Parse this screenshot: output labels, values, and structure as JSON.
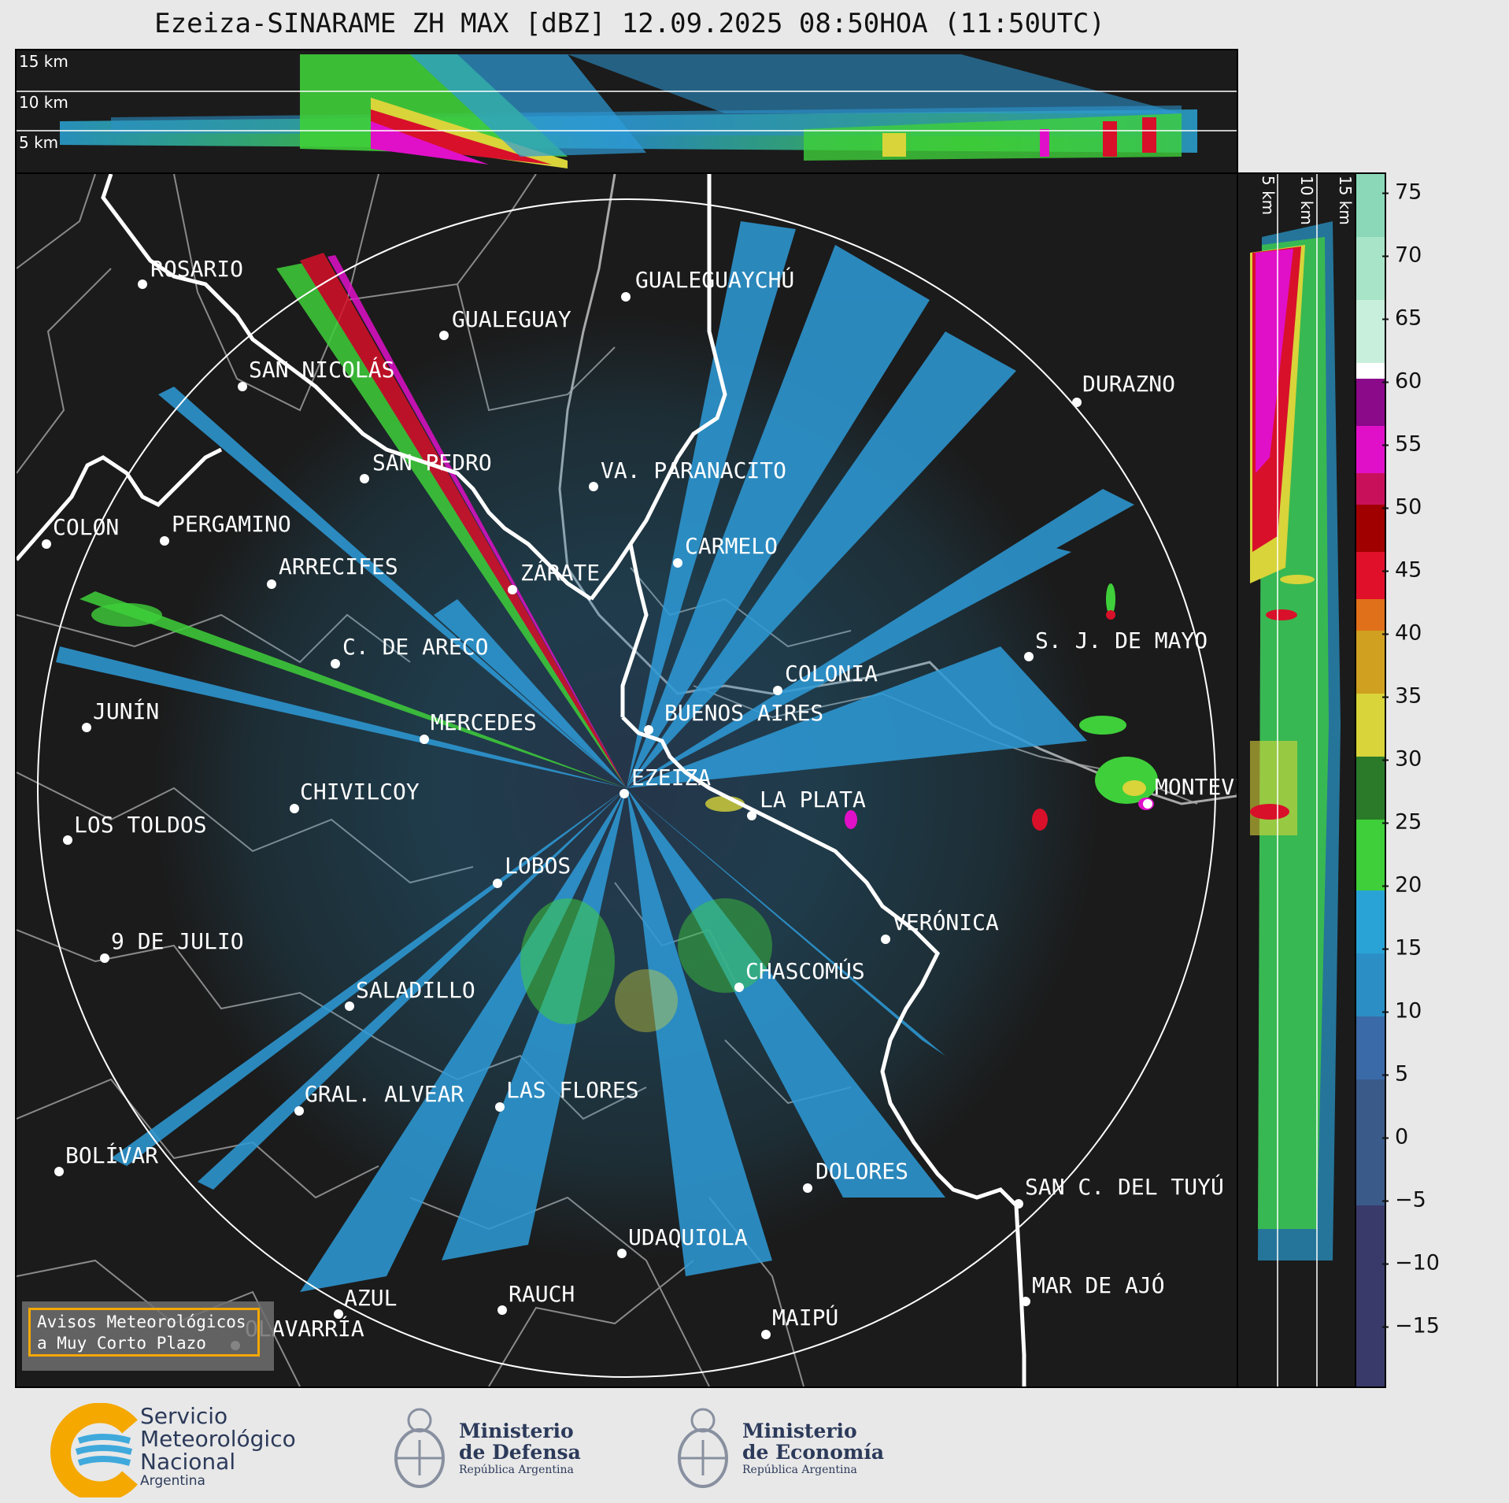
{
  "title": "Ezeiza-SINARAME ZH MAX [dBZ] 12.09.2025 08:50HOA (11:50UTC)",
  "altitude_labels_top": [
    "15 km",
    "10 km",
    "5 km"
  ],
  "altitude_labels_side": [
    "5 km",
    "10 km",
    "15 km"
  ],
  "colorbar": {
    "ticks": [
      "75",
      "70",
      "65",
      "60",
      "55",
      "50",
      "45",
      "40",
      "35",
      "30",
      "25",
      "20",
      "15",
      "10",
      "5",
      "0",
      "−5",
      "−10",
      "−15"
    ],
    "min": -20,
    "max": 77
  },
  "cities": [
    {
      "name": "ROSARIO"
    },
    {
      "name": "GUALEGUAYCHÚ"
    },
    {
      "name": "GUALEGUAY"
    },
    {
      "name": "SAN NICOLÁS"
    },
    {
      "name": "DURAZNO"
    },
    {
      "name": "SAN PEDRO"
    },
    {
      "name": "VA. PARANACITO"
    },
    {
      "name": "COLON"
    },
    {
      "name": "PERGAMINO"
    },
    {
      "name": "CARMELO"
    },
    {
      "name": "ARRECIFES"
    },
    {
      "name": "ZÁRATE"
    },
    {
      "name": "S. J. DE MAYO"
    },
    {
      "name": "C. DE ARECO"
    },
    {
      "name": "COLONIA"
    },
    {
      "name": "JUNÍN"
    },
    {
      "name": "BUENOS AIRES"
    },
    {
      "name": "MERCEDES"
    },
    {
      "name": "EZEIZA"
    },
    {
      "name": "MONTEVIDEO"
    },
    {
      "name": "CHIVILCOY"
    },
    {
      "name": "LA PLATA"
    },
    {
      "name": "LOS TOLDOS"
    },
    {
      "name": "LOBOS"
    },
    {
      "name": "VERÓNICA"
    },
    {
      "name": "9 DE JULIO"
    },
    {
      "name": "CHASCOMÚS"
    },
    {
      "name": "SALADILLO"
    },
    {
      "name": "GRAL. ALVEAR"
    },
    {
      "name": "LAS FLORES"
    },
    {
      "name": "BOLÍVAR"
    },
    {
      "name": "DOLORES"
    },
    {
      "name": "SAN C. DEL TUYÚ"
    },
    {
      "name": "UDAQUIOLA"
    },
    {
      "name": "RAUCH"
    },
    {
      "name": "MAR DE AJÓ"
    },
    {
      "name": "AZUL"
    },
    {
      "name": "OLAVARRÍA"
    },
    {
      "name": "MAIPÚ"
    }
  ],
  "warning_box": {
    "line1": "Avisos Meteorológicos",
    "line2": "a Muy Corto Plazo"
  },
  "logos": {
    "smn": {
      "line1": "Servicio",
      "line2": "Meteorológico",
      "line3": "Nacional",
      "line4": "Argentina"
    },
    "defensa": {
      "line1": "Ministerio",
      "line2": "de Defensa",
      "line3": "República Argentina"
    },
    "economia": {
      "line1": "Ministerio",
      "line2": "de Economía",
      "line3": "República Argentina"
    }
  },
  "colors": {
    "background": "#1b1b1b",
    "coast": "#ffffff",
    "borders": "#888888",
    "warning_border": "#f5a800",
    "smn_orange": "#f5a800",
    "smn_blue": "#3fa9dc"
  }
}
